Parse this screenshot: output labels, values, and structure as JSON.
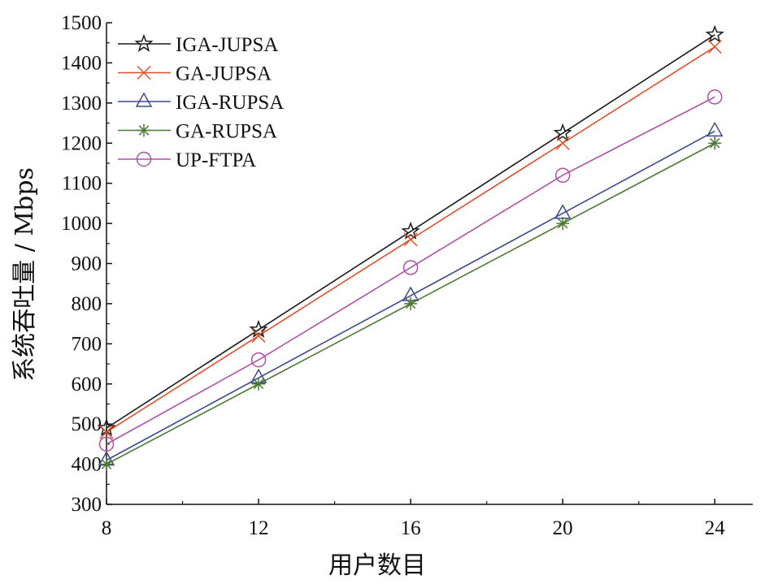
{
  "chart_data": {
    "type": "line",
    "xlabel": "用户数目",
    "ylabel": "系统吞吐量 / Mbps",
    "x": [
      8,
      12,
      16,
      20,
      24
    ],
    "xticks": [
      "8",
      "12",
      "16",
      "20",
      "24"
    ],
    "yticks": [
      "300",
      "400",
      "500",
      "600",
      "700",
      "800",
      "900",
      "1000",
      "1100",
      "1200",
      "1300",
      "1400",
      "1500"
    ],
    "xlim": [
      8,
      25
    ],
    "ylim": [
      300,
      1500
    ],
    "grid": false,
    "legend_position": "top-left",
    "series": [
      {
        "name": "IGA-JUPSA",
        "color": "#1a1a1a",
        "marker": "star",
        "values": [
          490,
          735,
          980,
          1225,
          1470
        ]
      },
      {
        "name": "GA-JUPSA",
        "color": "#e0502a",
        "marker": "x",
        "values": [
          480,
          720,
          960,
          1200,
          1440
        ]
      },
      {
        "name": "IGA-RUPSA",
        "color": "#3b4b8f",
        "marker": "triangle",
        "values": [
          410,
          615,
          820,
          1025,
          1230
        ]
      },
      {
        "name": "GA-RUPSA",
        "color": "#4a7a32",
        "marker": "asterisk",
        "values": [
          400,
          600,
          800,
          1000,
          1200
        ]
      },
      {
        "name": "UP-FTPA",
        "color": "#b14fa8",
        "marker": "circle",
        "values": [
          450,
          660,
          890,
          1120,
          1315
        ]
      }
    ]
  }
}
